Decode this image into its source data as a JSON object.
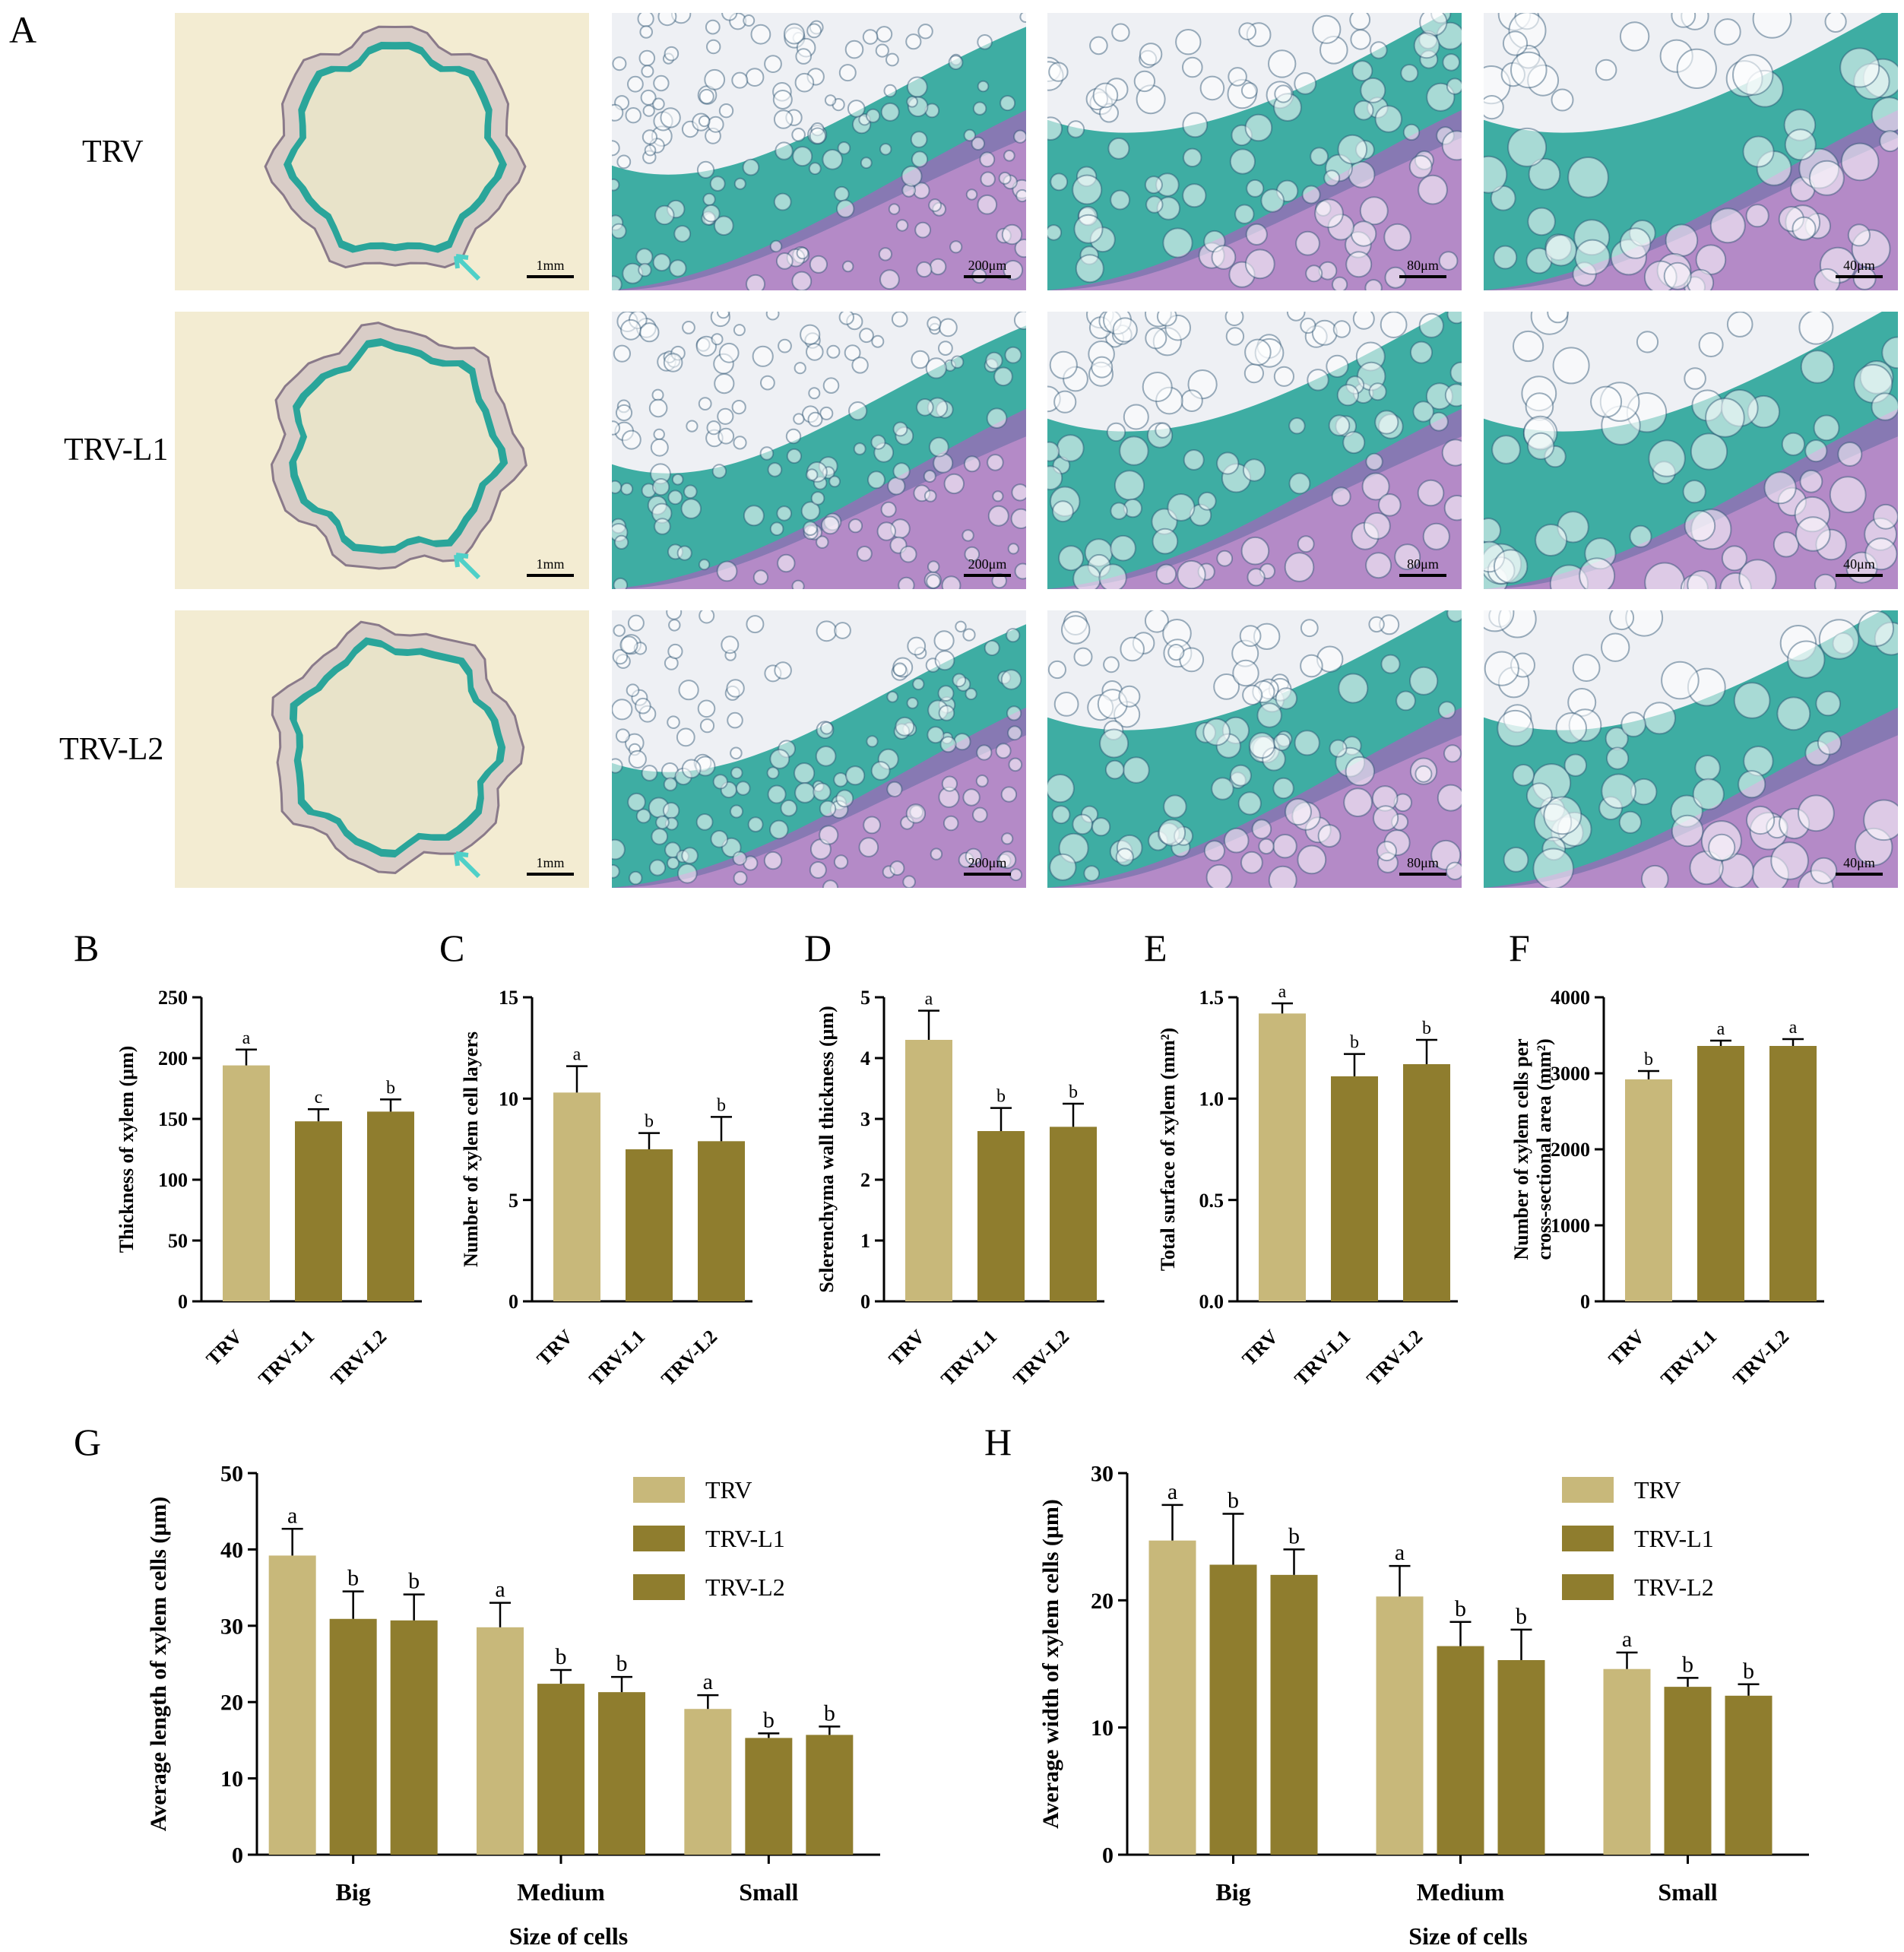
{
  "panels": {
    "A": "A",
    "B": "B",
    "C": "C",
    "D": "D",
    "E": "E",
    "F": "F",
    "G": "G",
    "H": "H"
  },
  "micrographs": {
    "row_labels": [
      "TRV",
      "TRV-L1",
      "TRV-L2"
    ],
    "scale_labels": [
      "1mm",
      "200μm",
      "80μm",
      "40μm"
    ]
  },
  "colors": {
    "TRV": "#c8b87a",
    "TRV-L1": "#8f7d2e",
    "TRV-L2": "#8f7d2e",
    "stain_green": "#2aa59a",
    "stain_purple": "#a068b8",
    "background_tan": "#f3ecd2"
  },
  "chart_data": [
    {
      "id": "B",
      "type": "bar",
      "categories": [
        "TRV",
        "TRV-L1",
        "TRV-L2"
      ],
      "values": [
        194,
        148,
        156
      ],
      "errors": [
        13,
        10,
        10
      ],
      "letters": [
        "a",
        "c",
        "b"
      ],
      "ylabel": "Thickness of xylem (μm)",
      "ylim": [
        0,
        250
      ],
      "yticks": [
        "0",
        "50",
        "100",
        "150",
        "200",
        "250"
      ]
    },
    {
      "id": "C",
      "type": "bar",
      "categories": [
        "TRV",
        "TRV-L1",
        "TRV-L2"
      ],
      "values": [
        10.3,
        7.5,
        7.9
      ],
      "errors": [
        1.3,
        0.8,
        1.2
      ],
      "letters": [
        "a",
        "b",
        "b"
      ],
      "ylabel": "Number of xylem cell layers",
      "ylim": [
        0,
        15
      ],
      "yticks": [
        "0",
        "5",
        "10",
        "15"
      ]
    },
    {
      "id": "D",
      "type": "bar",
      "categories": [
        "TRV",
        "TRV-L1",
        "TRV-L2"
      ],
      "values": [
        4.3,
        2.8,
        2.87
      ],
      "errors": [
        0.48,
        0.38,
        0.38
      ],
      "letters": [
        "a",
        "b",
        "b"
      ],
      "ylabel": "Sclerenchyma wall thickness (μm)",
      "ylim": [
        0,
        5
      ],
      "yticks": [
        "0",
        "1",
        "2",
        "3",
        "4",
        "5"
      ]
    },
    {
      "id": "E",
      "type": "bar",
      "categories": [
        "TRV",
        "TRV-L1",
        "TRV-L2"
      ],
      "values": [
        1.42,
        1.11,
        1.17
      ],
      "errors": [
        0.05,
        0.11,
        0.12
      ],
      "letters": [
        "a",
        "b",
        "b"
      ],
      "ylabel": "Total surface of xylem (mm²)",
      "ylim": [
        0,
        1.5
      ],
      "yticks": [
        "0.0",
        "0.5",
        "1.0",
        "1.5"
      ]
    },
    {
      "id": "F",
      "type": "bar",
      "categories": [
        "TRV",
        "TRV-L1",
        "TRV-L2"
      ],
      "values": [
        2920,
        3360,
        3360
      ],
      "errors": [
        110,
        70,
        90
      ],
      "letters": [
        "b",
        "a",
        "a"
      ],
      "ylabel": "Number of xylem cells per",
      "ylabel2": "cross-sectional area (mm²)",
      "ylim": [
        0,
        4000
      ],
      "yticks": [
        "0",
        "1000",
        "2000",
        "3000",
        "4000"
      ]
    },
    {
      "id": "G",
      "type": "bar",
      "categories": [
        "Big",
        "Medium",
        "Small"
      ],
      "series": [
        {
          "name": "TRV",
          "values": [
            39.2,
            29.8,
            19.1
          ],
          "errors": [
            3.5,
            3.2,
            1.8
          ],
          "letters": [
            "a",
            "a",
            "a"
          ]
        },
        {
          "name": "TRV-L1",
          "values": [
            30.9,
            22.4,
            15.3
          ],
          "errors": [
            3.6,
            1.8,
            0.6
          ],
          "letters": [
            "b",
            "b",
            "b"
          ]
        },
        {
          "name": "TRV-L2",
          "values": [
            30.7,
            21.3,
            15.7
          ],
          "errors": [
            3.4,
            2.0,
            1.1
          ],
          "letters": [
            "b",
            "b",
            "b"
          ]
        }
      ],
      "xlabel": "Size of cells",
      "ylabel": "Average length of xylem cells (μm)",
      "ylim": [
        0,
        50
      ],
      "yticks": [
        "0",
        "10",
        "20",
        "30",
        "40",
        "50"
      ],
      "legend": "top-right"
    },
    {
      "id": "H",
      "type": "bar",
      "categories": [
        "Big",
        "Medium",
        "Small"
      ],
      "series": [
        {
          "name": "TRV",
          "values": [
            24.7,
            20.3,
            14.6
          ],
          "errors": [
            2.8,
            2.4,
            1.3
          ],
          "letters": [
            "a",
            "a",
            "a"
          ]
        },
        {
          "name": "TRV-L1",
          "values": [
            22.8,
            16.4,
            13.2
          ],
          "errors": [
            4.0,
            1.9,
            0.7
          ],
          "letters": [
            "b",
            "b",
            "b"
          ]
        },
        {
          "name": "TRV-L2",
          "values": [
            22.0,
            15.3,
            12.5
          ],
          "errors": [
            2.0,
            2.4,
            0.9
          ],
          "letters": [
            "b",
            "b",
            "b"
          ]
        }
      ],
      "xlabel": "Size of cells",
      "ylabel": "Average width of xylem cells (μm)",
      "ylim": [
        0,
        30
      ],
      "yticks": [
        "0",
        "10",
        "20",
        "30"
      ],
      "legend": "top-right"
    }
  ]
}
